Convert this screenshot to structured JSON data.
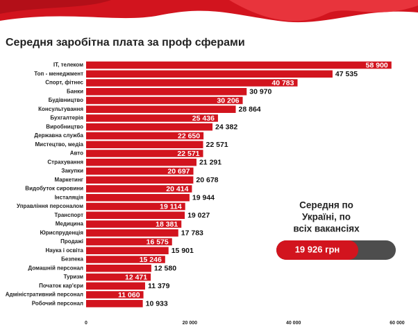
{
  "chart_data": {
    "type": "barh",
    "title": "Середня заробітна плата за проф сферами",
    "categories": [
      "ІТ, телеком",
      "Топ - менеджмент",
      "Спорт, фітнес",
      "Банки",
      "Будівництво",
      "Консультування",
      "Бухгалтерія",
      "Виробництво",
      "Державна служба",
      "Мистецтво, медіа",
      "Авто",
      "Страхування",
      "Закупки",
      "Маркетинг",
      "Видобуток сировини",
      "Інсталяція",
      "Управління персоналом",
      "Транспорт",
      "Медицина",
      "Юриспруденція",
      "Продажі",
      "Наука і освіта",
      "Безпека",
      "Домашній персонал",
      "Туризм",
      "Початок кар'єри",
      "Адміністративний персонал",
      "Робочий персонал"
    ],
    "values": [
      58900,
      47535,
      40783,
      30970,
      30206,
      28864,
      25436,
      24382,
      22650,
      22571,
      22571,
      21291,
      20697,
      20678,
      20414,
      19944,
      19114,
      19027,
      18381,
      17783,
      16575,
      15901,
      15246,
      12580,
      12471,
      11379,
      11060,
      10933
    ],
    "value_labels": [
      "58 900",
      "47 535",
      "40 783",
      "30 970",
      "30 206",
      "28 864",
      "25 436",
      "24 382",
      "22 650",
      "22 571",
      "22 571",
      "21 291",
      "20 697",
      "20 678",
      "20 414",
      "19 944",
      "19 114",
      "19 027",
      "18 381",
      "17 783",
      "16 575",
      "15 901",
      "15 246",
      "12 580",
      "12 471",
      "11 379",
      "11 060",
      "10 933"
    ],
    "color": "#d2141e",
    "xlim": [
      0,
      60000
    ],
    "xticks": [
      0,
      {
        "value": 20000,
        "label": "20 000"
      },
      {
        "value": 40000,
        "label": "40 000"
      },
      {
        "value": 60000,
        "label": "60 000"
      }
    ],
    "grid": false,
    "annotation": {
      "lines": [
        "Середня по",
        "Україні, по",
        "всіх вакансіях"
      ],
      "label": "19 926  грн"
    }
  }
}
